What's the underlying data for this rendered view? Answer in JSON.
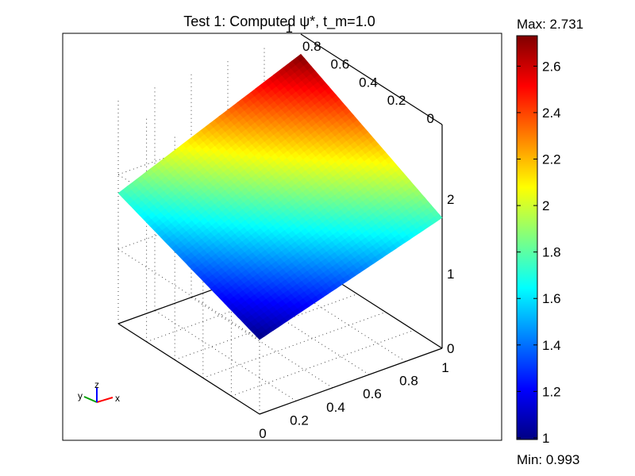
{
  "chart_data": {
    "type": "surface3d",
    "title": "Test 1:  Computed ψ*, t_m=1.0",
    "x_axis": {
      "ticks": [
        "0",
        "0.2",
        "0.4",
        "0.6",
        "0.8",
        "1"
      ],
      "range": [
        0,
        1
      ]
    },
    "y_axis": {
      "ticks": [
        "0",
        "0.2",
        "0.4",
        "0.6",
        "0.8",
        "1"
      ],
      "range": [
        0,
        1
      ]
    },
    "z_axis": {
      "ticks": [
        "0",
        "1",
        "2"
      ],
      "range": [
        0,
        3
      ]
    },
    "surface": {
      "corners": [
        {
          "x": 0,
          "y": 0,
          "z": 1.0
        },
        {
          "x": 1,
          "y": 0,
          "z": 1.75
        },
        {
          "x": 0,
          "y": 1,
          "z": 1.75
        },
        {
          "x": 1,
          "y": 1,
          "z": 2.731
        }
      ]
    },
    "colorbar": {
      "colormap": "jet",
      "min": 0.993,
      "max": 2.731,
      "ticks": [
        "1",
        "1.2",
        "1.4",
        "1.6",
        "1.8",
        "2",
        "2.2",
        "2.4",
        "2.6"
      ],
      "max_label": "Max: 2.731",
      "min_label": "Min: 0.993"
    },
    "axis_triad": {
      "labels": [
        "y",
        "z",
        "x"
      ],
      "colors": [
        "#00a000",
        "#0000ff",
        "#ff0000"
      ]
    },
    "grid": true
  }
}
